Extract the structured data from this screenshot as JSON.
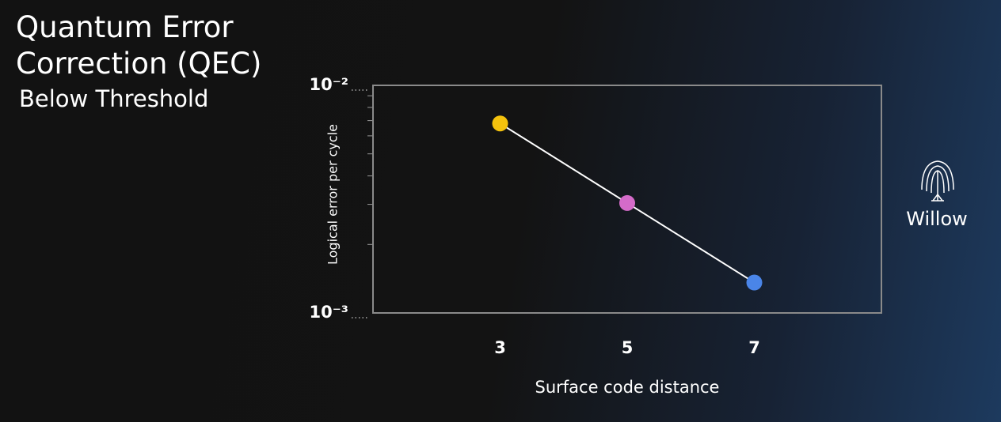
{
  "chart_data": {
    "type": "scatter-line",
    "title": "Quantum Error Correction (QEC)",
    "subtitle": "Below Threshold",
    "brand": "Willow",
    "xlabel": "Surface code distance",
    "ylabel": "Logical error per cycle",
    "x": [
      3,
      5,
      7
    ],
    "values": [
      0.0068,
      0.00304,
      0.00136
    ],
    "point_colors": [
      "#f4c20d",
      "#d46bc9",
      "#4a85e8"
    ],
    "line_color": "#ffffff",
    "xlim": [
      1,
      9
    ],
    "xticks": [
      3,
      5,
      7
    ],
    "ylim": [
      0.001,
      0.01
    ],
    "yscale": "log",
    "yticks": [
      {
        "value": 0.01,
        "label": "10⁻²"
      },
      {
        "value": 0.001,
        "label": "10⁻³"
      }
    ],
    "yminorticks": [
      0.002,
      0.003,
      0.004,
      0.005,
      0.006,
      0.007,
      0.008,
      0.009
    ]
  }
}
